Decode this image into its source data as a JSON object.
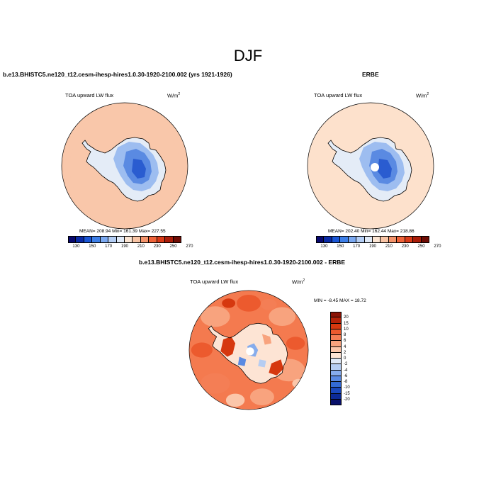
{
  "figure": {
    "title": "DJF"
  },
  "panels": [
    {
      "title": "b.e13.BHISTC5.ne120_t12.cesm-ihesp-hires1.0.30-1920-2100.002 (yrs 1921-1926)",
      "variable": "TOA upward LW flux",
      "units_base": "W/m",
      "units_exp": "2",
      "stats": "MEAN= 208.94  Min= 161.39  Max= 227.55",
      "ocean_color": "#f9c7aa"
    },
    {
      "title": "ERBE",
      "variable": "TOA upward LW flux",
      "units_base": "W/m",
      "units_exp": "2",
      "stats": "MEAN= 202.40  Min= 162.44  Max= 218.86",
      "ocean_color": "#fde1cc"
    },
    {
      "title": "b.e13.BHISTC5.ne120_t12.cesm-ihesp-hires1.0.30-1920-2100.002 - ERBE",
      "variable": "TOA upward LW flux",
      "units_base": "W/m",
      "units_exp": "2",
      "stats": "MIN =  -8.45 MAX =  18.72",
      "ocean_color": "#f47a4f"
    }
  ],
  "colorbar_abs": {
    "ticks": [
      "130",
      "150",
      "170",
      "190",
      "210",
      "230",
      "250",
      "270"
    ],
    "colors": [
      "#08086e",
      "#0a2aa6",
      "#1a56d6",
      "#3d7fe8",
      "#7aa8f0",
      "#b3cdf4",
      "#dfe9f7",
      "#fbe4d2",
      "#f8c3a4",
      "#f4946c",
      "#ef6339",
      "#d93a17",
      "#a91c08",
      "#6e0c04"
    ]
  },
  "colorbar_diff": {
    "ticks": [
      "20",
      "15",
      "10",
      "8",
      "6",
      "4",
      "2",
      "0",
      "-2",
      "-4",
      "-6",
      "-8",
      "-10",
      "-15",
      "-20"
    ],
    "colors": [
      "#8a1204",
      "#b32208",
      "#d6380f",
      "#ec5a2e",
      "#f47e55",
      "#f8a37e",
      "#fbc6aa",
      "#fde4d4",
      "#dfe8f6",
      "#b6cdf2",
      "#86acec",
      "#5a8ae2",
      "#336bd6",
      "#1a48bc",
      "#0c2a96",
      "#08106a"
    ]
  }
}
